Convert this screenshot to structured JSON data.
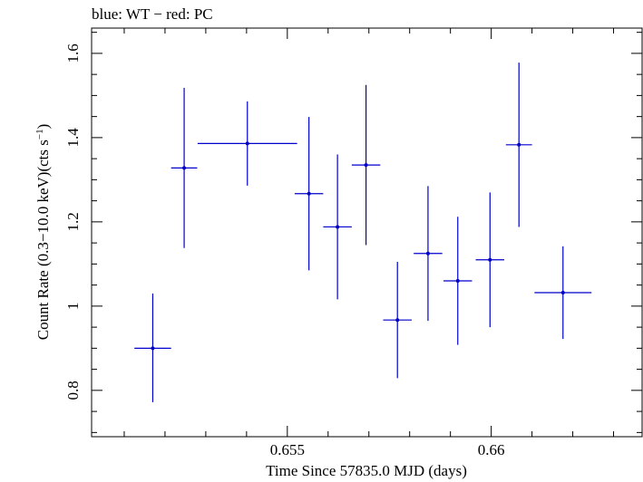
{
  "chart_data": {
    "type": "scatter",
    "title": "blue: WT − red: PC",
    "xlabel": "Time Since 57835.0 MJD (days)",
    "ylabel_main": "Count Rate (0.3−10.0 keV)(cts s",
    "ylabel_sup": "−1",
    "ylabel_close": ")",
    "xlim": [
      0.6502,
      0.6637
    ],
    "ylim": [
      0.69,
      1.66
    ],
    "x_ticks": [
      0.655,
      0.66
    ],
    "x_tick_labels": [
      "0.655",
      "0.66"
    ],
    "y_ticks": [
      0.8,
      1.0,
      1.2,
      1.4,
      1.6
    ],
    "y_tick_labels": [
      "0.8",
      "1",
      "1.2",
      "1.4",
      "1.6"
    ],
    "grid": false,
    "series": [
      {
        "color": "#0000cc",
        "points": [
          {
            "x": 0.6517,
            "y": 0.9,
            "xerr": 0.00045,
            "yerr_lo": 0.128,
            "yerr_hi": 0.13
          },
          {
            "x": 0.65247,
            "y": 1.328,
            "xerr": 0.00032,
            "yerr_lo": 0.19,
            "yerr_hi": 0.19
          },
          {
            "x": 0.65402,
            "y": 1.386,
            "xerr": 0.00122,
            "yerr_lo": 0.1,
            "yerr_hi": 0.1
          },
          {
            "x": 0.65553,
            "y": 1.267,
            "xerr": 0.00035,
            "yerr_lo": 0.182,
            "yerr_hi": 0.182
          },
          {
            "x": 0.65623,
            "y": 1.188,
            "xerr": 0.00035,
            "yerr_lo": 0.172,
            "yerr_hi": 0.172
          },
          {
            "x": 0.65693,
            "y": 1.335,
            "xerr": 0.00035,
            "yerr_lo": 0.19,
            "yerr_hi": 0.19
          },
          {
            "x": 0.6577,
            "y": 0.967,
            "xerr": 0.00035,
            "yerr_lo": 0.138,
            "yerr_hi": 0.138
          },
          {
            "x": 0.65845,
            "y": 1.125,
            "xerr": 0.00035,
            "yerr_lo": 0.16,
            "yerr_hi": 0.16
          },
          {
            "x": 0.65918,
            "y": 1.06,
            "xerr": 0.00035,
            "yerr_lo": 0.152,
            "yerr_hi": 0.152
          },
          {
            "x": 0.65997,
            "y": 1.11,
            "xerr": 0.00035,
            "yerr_lo": 0.16,
            "yerr_hi": 0.16
          },
          {
            "x": 0.66068,
            "y": 1.383,
            "xerr": 0.00032,
            "yerr_lo": 0.195,
            "yerr_hi": 0.195
          },
          {
            "x": 0.66176,
            "y": 1.032,
            "xerr": 0.0007,
            "yerr_lo": 0.11,
            "yerr_hi": 0.11
          }
        ]
      }
    ]
  }
}
